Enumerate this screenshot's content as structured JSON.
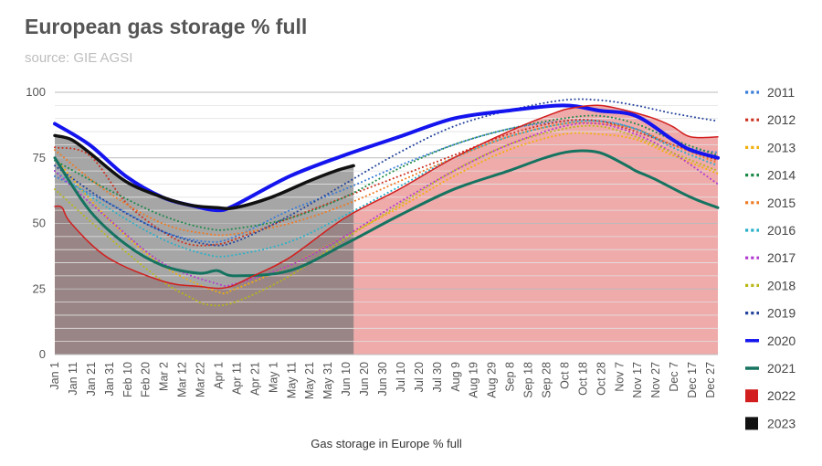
{
  "chart_data": {
    "type": "line",
    "title": "European gas storage % full",
    "subtitle": "source: GIE AGSI",
    "xlabel": "Gas storage in Europe % full",
    "ylabel": "",
    "ylim": [
      0,
      100
    ],
    "yticks": [
      0,
      25,
      50,
      75,
      100
    ],
    "x_tick_labels": [
      "Jan 1",
      "Jan 11",
      "Jan 21",
      "Jan 31",
      "Feb 10",
      "Feb 20",
      "Mar 2",
      "Mar 12",
      "Mar 22",
      "Apr 1",
      "Apr 11",
      "Apr 21",
      "May 1",
      "May 11",
      "May 21",
      "May 31",
      "Jun 10",
      "Jun 20",
      "Jun 30",
      "Jul 10",
      "Jul 20",
      "Jul 30",
      "Aug 9",
      "Aug 19",
      "Aug 29",
      "Sep 8",
      "Sep 18",
      "Sep 28",
      "Oct 8",
      "Oct 18",
      "Oct 28",
      "Nov 7",
      "Nov 17",
      "Nov 27",
      "Dec 7",
      "Dec 17",
      "Dec 27"
    ],
    "legend_position": "right",
    "series": [
      {
        "name": "2011",
        "style": "dotted",
        "color": "#3b7dd8",
        "points": [
          [
            1,
            68
          ],
          [
            30,
            58
          ],
          [
            60,
            47
          ],
          [
            85,
            43
          ],
          [
            100,
            45
          ],
          [
            130,
            55
          ],
          [
            160,
            63
          ],
          [
            190,
            72
          ],
          [
            220,
            80
          ],
          [
            250,
            86
          ],
          [
            280,
            89
          ],
          [
            300,
            89
          ],
          [
            320,
            86
          ],
          [
            340,
            80
          ],
          [
            365,
            77
          ]
        ]
      },
      {
        "name": "2012",
        "style": "dotted",
        "color": "#cc3322",
        "points": [
          [
            1,
            79
          ],
          [
            20,
            76
          ],
          [
            40,
            58
          ],
          [
            60,
            47
          ],
          [
            75,
            42
          ],
          [
            90,
            42
          ],
          [
            100,
            44
          ],
          [
            130,
            52
          ],
          [
            160,
            60
          ],
          [
            190,
            68
          ],
          [
            220,
            76
          ],
          [
            250,
            84
          ],
          [
            280,
            89
          ],
          [
            300,
            89
          ],
          [
            320,
            85
          ],
          [
            340,
            80
          ],
          [
            365,
            74
          ]
        ]
      },
      {
        "name": "2013",
        "style": "dotted",
        "color": "#f2b00c",
        "points": [
          [
            1,
            75
          ],
          [
            30,
            52
          ],
          [
            60,
            34
          ],
          [
            90,
            24
          ],
          [
            100,
            25
          ],
          [
            130,
            34
          ],
          [
            160,
            45
          ],
          [
            190,
            56
          ],
          [
            220,
            68
          ],
          [
            250,
            78
          ],
          [
            280,
            84
          ],
          [
            300,
            84
          ],
          [
            320,
            82
          ],
          [
            340,
            76
          ],
          [
            365,
            69
          ]
        ]
      },
      {
        "name": "2014",
        "style": "dotted",
        "color": "#1e8a4a",
        "points": [
          [
            1,
            74
          ],
          [
            30,
            63
          ],
          [
            60,
            53
          ],
          [
            85,
            48
          ],
          [
            100,
            48
          ],
          [
            130,
            52
          ],
          [
            160,
            60
          ],
          [
            190,
            71
          ],
          [
            220,
            80
          ],
          [
            250,
            86
          ],
          [
            280,
            90
          ],
          [
            300,
            91
          ],
          [
            320,
            88
          ],
          [
            340,
            82
          ],
          [
            365,
            76
          ]
        ]
      },
      {
        "name": "2015",
        "style": "dotted",
        "color": "#f07a22",
        "points": [
          [
            1,
            78
          ],
          [
            30,
            62
          ],
          [
            60,
            50
          ],
          [
            85,
            46
          ],
          [
            100,
            46
          ],
          [
            130,
            50
          ],
          [
            160,
            57
          ],
          [
            190,
            66
          ],
          [
            220,
            75
          ],
          [
            250,
            83
          ],
          [
            280,
            88
          ],
          [
            300,
            88
          ],
          [
            320,
            86
          ],
          [
            340,
            80
          ],
          [
            365,
            73
          ]
        ]
      },
      {
        "name": "2016",
        "style": "dotted",
        "color": "#2ab0c8",
        "points": [
          [
            1,
            70
          ],
          [
            30,
            56
          ],
          [
            60,
            44
          ],
          [
            85,
            38
          ],
          [
            100,
            38
          ],
          [
            130,
            43
          ],
          [
            160,
            53
          ],
          [
            190,
            64
          ],
          [
            220,
            75
          ],
          [
            250,
            83
          ],
          [
            280,
            88
          ],
          [
            300,
            89
          ],
          [
            320,
            86
          ],
          [
            340,
            79
          ],
          [
            365,
            72
          ]
        ]
      },
      {
        "name": "2017",
        "style": "dotted",
        "color": "#b23ad0",
        "points": [
          [
            1,
            70
          ],
          [
            30,
            52
          ],
          [
            60,
            35
          ],
          [
            90,
            27
          ],
          [
            100,
            27
          ],
          [
            130,
            34
          ],
          [
            160,
            45
          ],
          [
            190,
            58
          ],
          [
            220,
            70
          ],
          [
            250,
            80
          ],
          [
            280,
            87
          ],
          [
            300,
            88
          ],
          [
            320,
            84
          ],
          [
            340,
            77
          ],
          [
            365,
            65
          ]
        ]
      },
      {
        "name": "2018",
        "style": "dotted",
        "color": "#b8b818",
        "points": [
          [
            1,
            63
          ],
          [
            30,
            45
          ],
          [
            60,
            28
          ],
          [
            75,
            22
          ],
          [
            85,
            19
          ],
          [
            100,
            20
          ],
          [
            130,
            30
          ],
          [
            160,
            44
          ],
          [
            190,
            57
          ],
          [
            220,
            70
          ],
          [
            250,
            80
          ],
          [
            280,
            86
          ],
          [
            300,
            87
          ],
          [
            320,
            83
          ],
          [
            340,
            77
          ],
          [
            365,
            70
          ]
        ]
      },
      {
        "name": "2019",
        "style": "dotted",
        "color": "#26459c",
        "points": [
          [
            1,
            72
          ],
          [
            30,
            58
          ],
          [
            60,
            47
          ],
          [
            85,
            42
          ],
          [
            100,
            43
          ],
          [
            130,
            53
          ],
          [
            160,
            65
          ],
          [
            190,
            77
          ],
          [
            220,
            87
          ],
          [
            250,
            93
          ],
          [
            280,
            97
          ],
          [
            300,
            97
          ],
          [
            320,
            95
          ],
          [
            340,
            92
          ],
          [
            365,
            89
          ]
        ]
      },
      {
        "name": "2020",
        "style": "solid",
        "width": 4,
        "color": "#1414ee",
        "points": [
          [
            1,
            88
          ],
          [
            20,
            80
          ],
          [
            40,
            68
          ],
          [
            60,
            60
          ],
          [
            75,
            57
          ],
          [
            90,
            55
          ],
          [
            100,
            57
          ],
          [
            130,
            68
          ],
          [
            160,
            76
          ],
          [
            190,
            83
          ],
          [
            220,
            90
          ],
          [
            250,
            93
          ],
          [
            280,
            95
          ],
          [
            300,
            93
          ],
          [
            320,
            91
          ],
          [
            340,
            82
          ],
          [
            350,
            78
          ],
          [
            365,
            75
          ]
        ]
      },
      {
        "name": "2021",
        "style": "solid",
        "width": 3,
        "color": "#157360",
        "points": [
          [
            1,
            75
          ],
          [
            20,
            55
          ],
          [
            40,
            42
          ],
          [
            60,
            34
          ],
          [
            80,
            31
          ],
          [
            90,
            32
          ],
          [
            100,
            30
          ],
          [
            130,
            32
          ],
          [
            160,
            42
          ],
          [
            190,
            53
          ],
          [
            220,
            63
          ],
          [
            250,
            70
          ],
          [
            270,
            75
          ],
          [
            285,
            77.5
          ],
          [
            300,
            77
          ],
          [
            315,
            72
          ],
          [
            320,
            70
          ],
          [
            330,
            67
          ],
          [
            350,
            60
          ],
          [
            365,
            56
          ]
        ]
      },
      {
        "name": "2022",
        "style": "solid",
        "width": 1.5,
        "color": "#d21e1e",
        "fill": "#efaaaa",
        "points": [
          [
            1,
            56.5
          ],
          [
            5,
            56
          ],
          [
            10,
            50
          ],
          [
            30,
            37
          ],
          [
            60,
            28
          ],
          [
            80,
            26
          ],
          [
            95,
            25.5
          ],
          [
            110,
            30
          ],
          [
            130,
            37
          ],
          [
            160,
            52
          ],
          [
            190,
            63
          ],
          [
            220,
            75
          ],
          [
            250,
            85
          ],
          [
            275,
            92
          ],
          [
            285,
            94
          ],
          [
            300,
            95
          ],
          [
            315,
            93
          ],
          [
            330,
            90
          ],
          [
            340,
            87
          ],
          [
            350,
            83
          ],
          [
            365,
            83
          ]
        ]
      },
      {
        "name": "2023",
        "style": "solid",
        "width": 3.5,
        "color": "#111111",
        "fill": "#a6a6a6",
        "points": [
          [
            1,
            83.5
          ],
          [
            10,
            82
          ],
          [
            20,
            77
          ],
          [
            40,
            66
          ],
          [
            60,
            60
          ],
          [
            75,
            57
          ],
          [
            90,
            56
          ],
          [
            100,
            56
          ],
          [
            120,
            60
          ],
          [
            140,
            66
          ],
          [
            155,
            70
          ],
          [
            165,
            72
          ]
        ]
      }
    ]
  }
}
